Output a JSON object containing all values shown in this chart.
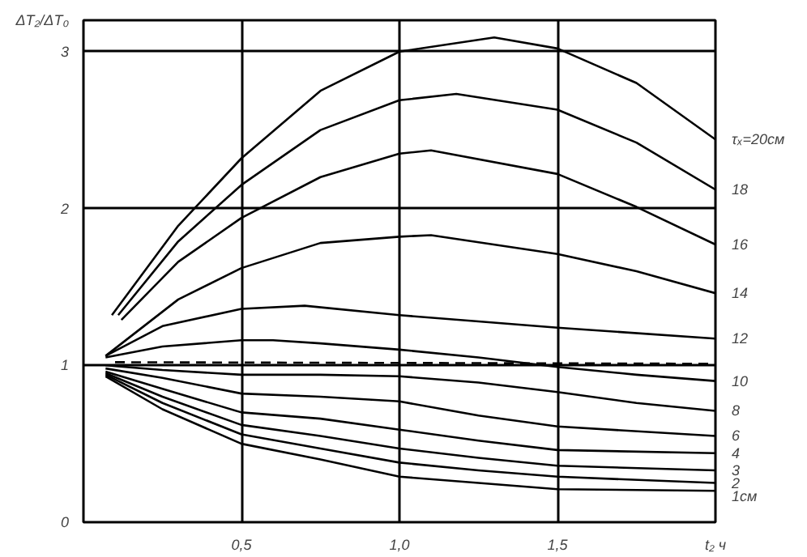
{
  "chart_data": {
    "type": "line",
    "ylabel": "ΔT₂/ΔT₀",
    "xlabel": "t₂ ч",
    "xlim": [
      0,
      2
    ],
    "ylim": [
      0,
      3.2
    ],
    "xticks": [
      {
        "value": 0.5,
        "label": "0,5"
      },
      {
        "value": 1.0,
        "label": "1,0"
      },
      {
        "value": 1.5,
        "label": "1,5"
      }
    ],
    "yticks": [
      0,
      1,
      2,
      3
    ],
    "grid": true,
    "legend": false,
    "marker": "none",
    "line_style": "solid",
    "series": [
      {
        "name": "τₓ=20см",
        "color": "#000000",
        "x": [
          0.09,
          0.3,
          0.5,
          0.75,
          1.0,
          1.3,
          1.5,
          1.75,
          2.0
        ],
        "values": [
          1.32,
          1.89,
          2.32,
          2.75,
          3.0,
          3.09,
          3.02,
          2.8,
          2.44
        ]
      },
      {
        "name": "18",
        "color": "#000000",
        "x": [
          0.11,
          0.3,
          0.5,
          0.75,
          1.0,
          1.18,
          1.5,
          1.75,
          2.0
        ],
        "values": [
          1.32,
          1.79,
          2.15,
          2.5,
          2.69,
          2.73,
          2.63,
          2.42,
          2.12
        ]
      },
      {
        "name": "16",
        "color": "#000000",
        "x": [
          0.12,
          0.3,
          0.5,
          0.75,
          1.0,
          1.1,
          1.5,
          1.75,
          2.0
        ],
        "values": [
          1.29,
          1.66,
          1.94,
          2.2,
          2.35,
          2.37,
          2.22,
          2.01,
          1.77
        ]
      },
      {
        "name": "14",
        "color": "#000000",
        "x": [
          0.07,
          0.3,
          0.5,
          0.75,
          1.0,
          1.1,
          1.5,
          1.75,
          2.0
        ],
        "values": [
          1.06,
          1.42,
          1.62,
          1.78,
          1.82,
          1.83,
          1.71,
          1.6,
          1.46
        ]
      },
      {
        "name": "12",
        "color": "#000000",
        "x": [
          0.07,
          0.25,
          0.5,
          0.7,
          1.0,
          1.25,
          1.5,
          2.0
        ],
        "values": [
          1.06,
          1.25,
          1.36,
          1.38,
          1.32,
          1.28,
          1.24,
          1.17
        ]
      },
      {
        "name": "10",
        "color": "#000000",
        "x": [
          0.07,
          0.25,
          0.5,
          0.6,
          0.75,
          1.0,
          1.25,
          1.5,
          1.75,
          2.0
        ],
        "values": [
          1.05,
          1.12,
          1.16,
          1.16,
          1.14,
          1.1,
          1.05,
          0.99,
          0.94,
          0.9
        ]
      },
      {
        "color": "#000000",
        "line_style": "dashed",
        "x": [
          0.1,
          2.0
        ],
        "values": [
          1.02,
          1.01
        ]
      },
      {
        "name": "8",
        "color": "#000000",
        "x": [
          0.07,
          0.25,
          0.5,
          0.75,
          1.0,
          1.25,
          1.5,
          1.75,
          2.0
        ],
        "values": [
          1.0,
          0.97,
          0.94,
          0.94,
          0.93,
          0.89,
          0.83,
          0.76,
          0.71
        ]
      },
      {
        "name": "6",
        "color": "#000000",
        "x": [
          0.07,
          0.25,
          0.5,
          0.75,
          1.0,
          1.25,
          1.5,
          2.0
        ],
        "values": [
          0.98,
          0.92,
          0.82,
          0.8,
          0.77,
          0.68,
          0.61,
          0.55
        ]
      },
      {
        "name": "4",
        "color": "#000000",
        "x": [
          0.07,
          0.25,
          0.5,
          0.75,
          1.0,
          1.25,
          1.5,
          2.0
        ],
        "values": [
          0.96,
          0.85,
          0.7,
          0.66,
          0.59,
          0.52,
          0.46,
          0.44
        ]
      },
      {
        "name": "3",
        "color": "#000000",
        "x": [
          0.07,
          0.25,
          0.5,
          0.75,
          1.0,
          1.25,
          1.5,
          2.0
        ],
        "values": [
          0.95,
          0.8,
          0.62,
          0.55,
          0.47,
          0.41,
          0.36,
          0.33
        ]
      },
      {
        "name": "2",
        "color": "#000000",
        "x": [
          0.07,
          0.25,
          0.5,
          0.75,
          1.0,
          1.25,
          1.5,
          2.0
        ],
        "values": [
          0.94,
          0.76,
          0.56,
          0.47,
          0.38,
          0.33,
          0.29,
          0.25
        ]
      },
      {
        "name": "1см",
        "color": "#000000",
        "x": [
          0.07,
          0.25,
          0.5,
          0.75,
          1.0,
          1.25,
          1.5,
          2.0
        ],
        "values": [
          0.93,
          0.72,
          0.5,
          0.4,
          0.29,
          0.25,
          0.21,
          0.2
        ]
      }
    ]
  }
}
